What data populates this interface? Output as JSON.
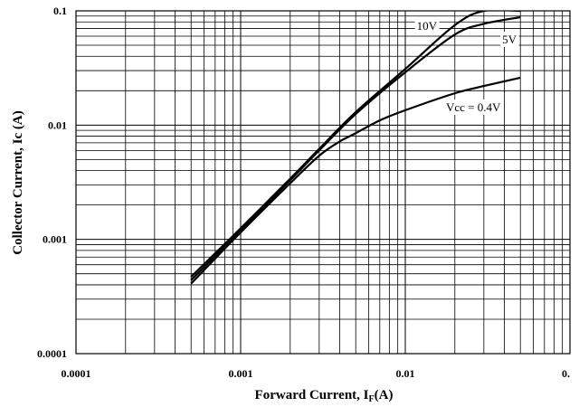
{
  "chart_data": {
    "type": "line",
    "xlabel": "Forward Current, I",
    "xlabel_subscript": "F",
    "xlabel_suffix": "(A)",
    "ylabel": "Collector Current, Ic (A)",
    "xscale": "log",
    "yscale": "log",
    "xlim": [
      0.0001,
      0.1
    ],
    "ylim": [
      0.0001,
      0.1
    ],
    "grid": true,
    "x_tick_labels": [
      "0.0001",
      "0.001",
      "0.01",
      "0."
    ],
    "y_tick_labels": [
      "0.1",
      "0.01",
      "0.001",
      "0.0001"
    ],
    "series": [
      {
        "name": "10V",
        "x": [
          0.0005,
          0.001,
          0.002,
          0.003,
          0.005,
          0.01,
          0.02,
          0.03,
          0.05
        ],
        "y": [
          0.00047,
          0.00125,
          0.0034,
          0.0062,
          0.013,
          0.031,
          0.075,
          0.1,
          0.1
        ]
      },
      {
        "name": "5V",
        "x": [
          0.0005,
          0.001,
          0.002,
          0.003,
          0.005,
          0.01,
          0.02,
          0.03,
          0.05
        ],
        "y": [
          0.00044,
          0.0012,
          0.0033,
          0.006,
          0.0125,
          0.029,
          0.062,
          0.077,
          0.088
        ]
      },
      {
        "name": "Vcc = 0.4V",
        "x": [
          0.0005,
          0.001,
          0.002,
          0.003,
          0.004,
          0.005,
          0.007,
          0.01,
          0.02,
          0.03,
          0.05
        ],
        "y": [
          0.00041,
          0.00115,
          0.0031,
          0.0054,
          0.0072,
          0.0085,
          0.011,
          0.0135,
          0.019,
          0.022,
          0.026
        ]
      }
    ]
  }
}
